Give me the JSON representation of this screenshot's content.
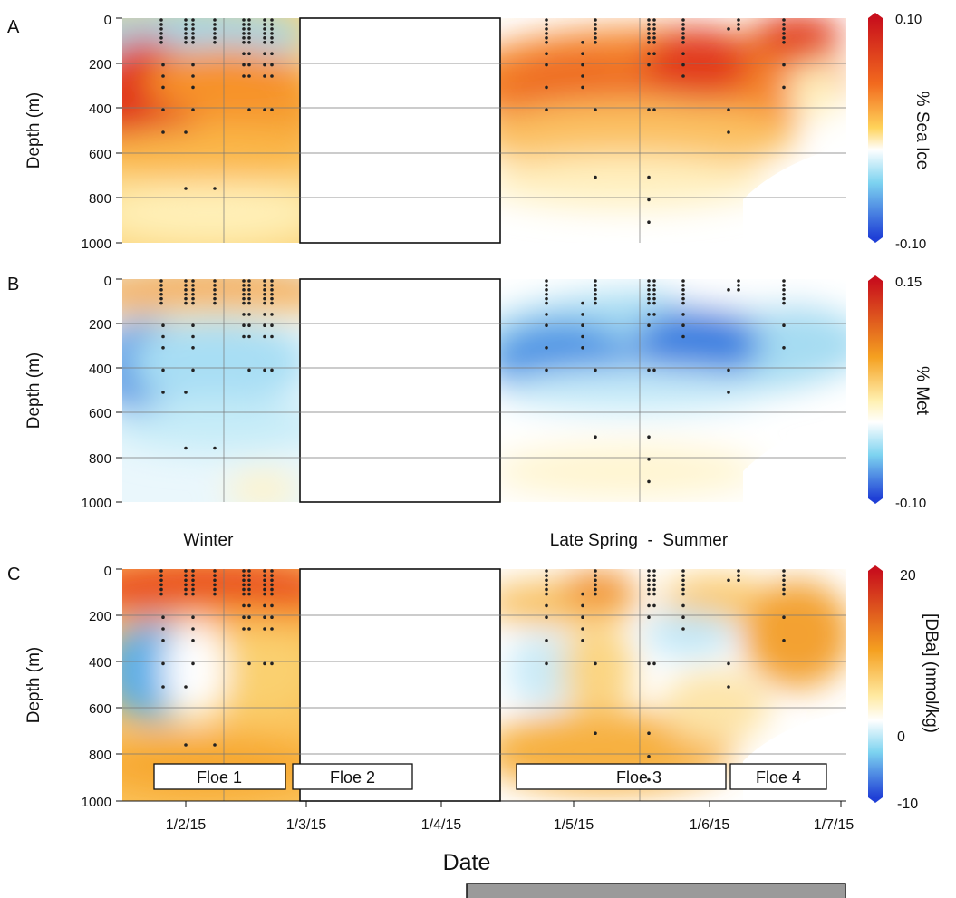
{
  "chart_data": [
    {
      "panel": "A",
      "type": "heatmap",
      "ylabel": "Depth (m)",
      "yticks": [
        "0",
        "200",
        "400",
        "600",
        "800",
        "1000"
      ],
      "ylim": [
        0,
        1000
      ],
      "y_inverted": true,
      "colorbar_label": "% Sea Ice",
      "colorbar_ticks": [
        "0.10",
        "-0.10"
      ],
      "color_range": [
        -0.1,
        0.1
      ],
      "blobs": [
        {
          "date": "1/2/15",
          "depth": 30,
          "value": -0.02
        },
        {
          "date": "1/2/15",
          "depth": 380,
          "value": 0.09
        },
        {
          "date": "1/2/15",
          "depth": 620,
          "value": 0.05
        },
        {
          "date": "1/2/15",
          "depth": 900,
          "value": 0.02
        },
        {
          "date": "1/5/15",
          "depth": 120,
          "value": 0.08
        },
        {
          "date": "1/5/15",
          "depth": 400,
          "value": 0.07
        },
        {
          "date": "1/6/15",
          "depth": 180,
          "value": 0.08
        },
        {
          "date": "1/6/15",
          "depth": 20,
          "value": 0.09
        },
        {
          "date": "1/6/15",
          "depth": 600,
          "value": 0.02
        }
      ]
    },
    {
      "panel": "B",
      "type": "heatmap",
      "ylabel": "Depth (m)",
      "yticks": [
        "0",
        "200",
        "400",
        "600",
        "800",
        "1000"
      ],
      "ylim": [
        0,
        1000
      ],
      "y_inverted": true,
      "colorbar_label": "% Met",
      "colorbar_ticks": [
        "0.15",
        "-0.10"
      ],
      "color_range": [
        -0.1,
        0.15
      ],
      "blobs": [
        {
          "date": "1/2/15",
          "depth": 40,
          "value": 0.09
        },
        {
          "date": "1/2/15",
          "depth": 380,
          "value": -0.08
        },
        {
          "date": "1/2/15",
          "depth": 700,
          "value": -0.01
        },
        {
          "date": "1/5/15",
          "depth": 300,
          "value": -0.06
        },
        {
          "date": "1/6/15",
          "depth": 250,
          "value": -0.08
        },
        {
          "date": "1/5/15",
          "depth": 800,
          "value": 0.02
        }
      ]
    },
    {
      "panel": "C",
      "type": "heatmap",
      "ylabel": "Depth (m)",
      "yticks": [
        "0",
        "200",
        "400",
        "600",
        "800",
        "1000"
      ],
      "ylim": [
        0,
        1000
      ],
      "y_inverted": true,
      "colorbar_label": "[DBa] (nmol/kg)",
      "colorbar_ticks": [
        "20",
        "0",
        "-10"
      ],
      "color_range": [
        -10,
        20
      ],
      "blobs": [
        {
          "date": "1/2/15",
          "depth": 60,
          "value": 16
        },
        {
          "date": "1/2/15",
          "depth": 380,
          "value": -4
        },
        {
          "date": "1/2/15",
          "depth": 850,
          "value": 9
        },
        {
          "date": "1/5/15",
          "depth": 60,
          "value": 10
        },
        {
          "date": "1/5/15",
          "depth": 700,
          "value": 10
        },
        {
          "date": "1/6/15",
          "depth": 250,
          "value": 1
        },
        {
          "date": "1/7/15",
          "depth": 300,
          "value": 10
        }
      ]
    }
  ],
  "figure": {
    "panel_labels": [
      "A",
      "B",
      "C"
    ],
    "xlabel": "Date",
    "xticks": [
      "1/2/15",
      "1/3/15",
      "1/4/15",
      "1/5/15",
      "1/6/15",
      "1/7/15"
    ],
    "season_winter": "Winter",
    "season_summer": "Late Spring  -  Summer",
    "floes": [
      "Floe 1",
      "Floe 2",
      "Floe 3",
      "Floe 4"
    ],
    "colors": {
      "scale_high": "#d7191c",
      "scale_mid_warm": "#f5a623",
      "scale_zero": "#ffffff",
      "scale_low": "#2c7bb6"
    }
  }
}
